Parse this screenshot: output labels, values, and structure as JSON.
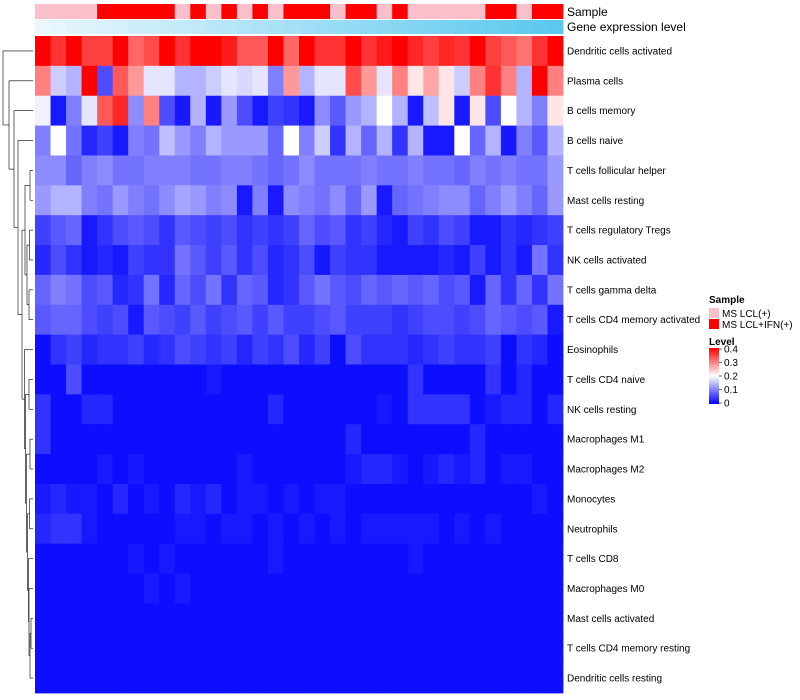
{
  "chart_data": {
    "type": "heatmap",
    "title": "",
    "annotation_labels": {
      "sample": "Sample",
      "gene": "Gene expression level"
    },
    "rows": [
      "Dendritic cells activated",
      "Plasma cells",
      "B cells memory",
      "B cells naive",
      "T cells follicular helper",
      "Mast cells resting",
      "T cells regulatory  Tregs",
      "NK cells activated",
      "T cells gamma delta",
      "T cells CD4 memory activated",
      "Eosinophils",
      "T cells CD4 naive",
      "NK cells resting",
      "Macrophages M1",
      "Macrophages M2",
      "Monocytes",
      "Neutrophils",
      "T cells CD8",
      "Macrophages M0",
      "Mast cells activated",
      "T cells CD4 memory resting",
      "Dendritic cells resting"
    ],
    "sample_groups": [
      0,
      0,
      0,
      0,
      1,
      1,
      1,
      1,
      1,
      0,
      1,
      0,
      1,
      0,
      1,
      0,
      1,
      1,
      1,
      0,
      1,
      1,
      0,
      1,
      0,
      0,
      0,
      0,
      0,
      1,
      1,
      0,
      1,
      1
    ],
    "gene_level_gradient": [
      "#eaf7fd",
      "#5bc8ee"
    ],
    "values": [
      [
        0.4,
        0.36,
        0.4,
        0.35,
        0.35,
        0.4,
        0.32,
        0.34,
        0.4,
        0.36,
        0.4,
        0.4,
        0.38,
        0.33,
        0.33,
        0.4,
        0.32,
        0.4,
        0.36,
        0.36,
        0.4,
        0.36,
        0.38,
        0.4,
        0.37,
        0.35,
        0.37,
        0.36,
        0.4,
        0.35,
        0.33,
        0.31,
        0.36,
        0.4
      ],
      [
        0.3,
        0.16,
        0.14,
        0.4,
        0.06,
        0.33,
        0.28,
        0.18,
        0.18,
        0.14,
        0.14,
        0.16,
        0.18,
        0.17,
        0.18,
        0.1,
        0.28,
        0.14,
        0.18,
        0.18,
        0.34,
        0.28,
        0.18,
        0.3,
        0.22,
        0.27,
        0.22,
        0.16,
        0.3,
        0.36,
        0.3,
        0.14,
        0.4,
        0.3
      ],
      [
        0.19,
        0.02,
        0.1,
        0.18,
        0.33,
        0.37,
        0.11,
        0.3,
        0.06,
        0.02,
        0.14,
        0.02,
        0.12,
        0.06,
        0.02,
        0.05,
        0.04,
        0.02,
        0.11,
        0.07,
        0.12,
        0.14,
        0.2,
        0.14,
        0.02,
        0.15,
        0.22,
        0.02,
        0.22,
        0.06,
        0.2,
        0.14,
        0.1,
        0.22
      ],
      [
        0.1,
        0.2,
        0.09,
        0.03,
        0.05,
        0.02,
        0.1,
        0.09,
        0.15,
        0.12,
        0.1,
        0.14,
        0.12,
        0.12,
        0.12,
        0.08,
        0.2,
        0.1,
        0.16,
        0.04,
        0.14,
        0.08,
        0.14,
        0.04,
        0.14,
        0.02,
        0.02,
        0.2,
        0.08,
        0.14,
        0.02,
        0.1,
        0.07,
        0.14
      ],
      [
        0.11,
        0.11,
        0.08,
        0.1,
        0.11,
        0.09,
        0.09,
        0.1,
        0.1,
        0.1,
        0.09,
        0.09,
        0.1,
        0.1,
        0.09,
        0.08,
        0.09,
        0.11,
        0.09,
        0.09,
        0.09,
        0.1,
        0.09,
        0.09,
        0.1,
        0.09,
        0.09,
        0.08,
        0.1,
        0.09,
        0.1,
        0.09,
        0.09,
        0.12
      ],
      [
        0.12,
        0.14,
        0.14,
        0.1,
        0.09,
        0.12,
        0.1,
        0.09,
        0.11,
        0.13,
        0.12,
        0.1,
        0.11,
        0.02,
        0.1,
        0.02,
        0.11,
        0.1,
        0.09,
        0.11,
        0.08,
        0.12,
        0.02,
        0.08,
        0.09,
        0.1,
        0.11,
        0.11,
        0.08,
        0.1,
        0.12,
        0.1,
        0.08,
        0.12
      ],
      [
        0.05,
        0.07,
        0.08,
        0.02,
        0.04,
        0.06,
        0.07,
        0.06,
        0.04,
        0.07,
        0.06,
        0.05,
        0.06,
        0.04,
        0.05,
        0.04,
        0.05,
        0.08,
        0.06,
        0.07,
        0.04,
        0.05,
        0.03,
        0.02,
        0.05,
        0.04,
        0.06,
        0.05,
        0.02,
        0.02,
        0.04,
        0.03,
        0.04,
        0.05
      ],
      [
        0.03,
        0.06,
        0.04,
        0.02,
        0.03,
        0.02,
        0.05,
        0.04,
        0.04,
        0.09,
        0.07,
        0.05,
        0.07,
        0.04,
        0.06,
        0.03,
        0.04,
        0.06,
        0.02,
        0.05,
        0.04,
        0.04,
        0.02,
        0.02,
        0.02,
        0.02,
        0.03,
        0.02,
        0.05,
        0.02,
        0.04,
        0.02,
        0.09,
        0.04
      ],
      [
        0.08,
        0.1,
        0.09,
        0.06,
        0.07,
        0.03,
        0.04,
        0.09,
        0.03,
        0.08,
        0.06,
        0.09,
        0.04,
        0.08,
        0.07,
        0.03,
        0.04,
        0.07,
        0.09,
        0.07,
        0.06,
        0.08,
        0.07,
        0.08,
        0.07,
        0.08,
        0.06,
        0.07,
        0.02,
        0.08,
        0.04,
        0.08,
        0.04,
        0.09
      ],
      [
        0.07,
        0.08,
        0.08,
        0.06,
        0.05,
        0.06,
        0.02,
        0.07,
        0.06,
        0.05,
        0.07,
        0.05,
        0.06,
        0.07,
        0.05,
        0.07,
        0.05,
        0.05,
        0.06,
        0.07,
        0.05,
        0.05,
        0.05,
        0.04,
        0.05,
        0.06,
        0.06,
        0.05,
        0.06,
        0.08,
        0.07,
        0.06,
        0.07,
        0.02
      ],
      [
        0.01,
        0.04,
        0.05,
        0.03,
        0.04,
        0.04,
        0.05,
        0.03,
        0.04,
        0.06,
        0.05,
        0.04,
        0.05,
        0.03,
        0.05,
        0.04,
        0.06,
        0.03,
        0.05,
        0.01,
        0.06,
        0.04,
        0.04,
        0.04,
        0.03,
        0.04,
        0.05,
        0.04,
        0.04,
        0.05,
        0.01,
        0.04,
        0.03,
        0.01
      ],
      [
        0.01,
        0.01,
        0.06,
        0.01,
        0.01,
        0.01,
        0.01,
        0.01,
        0.01,
        0.01,
        0.01,
        0.02,
        0.01,
        0.01,
        0.01,
        0.01,
        0.01,
        0.01,
        0.01,
        0.01,
        0.01,
        0.01,
        0.01,
        0.01,
        0.04,
        0.01,
        0.01,
        0.01,
        0.01,
        0.04,
        0.01,
        0.03,
        0.01,
        0.01
      ],
      [
        0.04,
        0.01,
        0.01,
        0.03,
        0.03,
        0.01,
        0.01,
        0.01,
        0.01,
        0.01,
        0.01,
        0.01,
        0.01,
        0.01,
        0.01,
        0.03,
        0.01,
        0.01,
        0.01,
        0.01,
        0.01,
        0.01,
        0.02,
        0.01,
        0.04,
        0.04,
        0.04,
        0.04,
        0.01,
        0.02,
        0.03,
        0.03,
        0.01,
        0.03
      ],
      [
        0.04,
        0.01,
        0.01,
        0.01,
        0.01,
        0.01,
        0.01,
        0.01,
        0.01,
        0.01,
        0.01,
        0.01,
        0.01,
        0.01,
        0.01,
        0.01,
        0.01,
        0.01,
        0.01,
        0.01,
        0.03,
        0.01,
        0.01,
        0.01,
        0.01,
        0.01,
        0.01,
        0.01,
        0.03,
        0.01,
        0.01,
        0.01,
        0.01,
        0.01
      ],
      [
        0.01,
        0.01,
        0.01,
        0.01,
        0.02,
        0.01,
        0.02,
        0.01,
        0.01,
        0.01,
        0.01,
        0.01,
        0.01,
        0.02,
        0.01,
        0.01,
        0.01,
        0.01,
        0.01,
        0.01,
        0.02,
        0.03,
        0.03,
        0.02,
        0.01,
        0.02,
        0.03,
        0.02,
        0.03,
        0.01,
        0.02,
        0.02,
        0.01,
        0.01
      ],
      [
        0.02,
        0.03,
        0.02,
        0.02,
        0.01,
        0.03,
        0.01,
        0.02,
        0.01,
        0.03,
        0.02,
        0.03,
        0.01,
        0.02,
        0.02,
        0.01,
        0.02,
        0.01,
        0.02,
        0.02,
        0.01,
        0.01,
        0.01,
        0.01,
        0.01,
        0.01,
        0.01,
        0.01,
        0.01,
        0.01,
        0.01,
        0.01,
        0.02,
        0.01
      ],
      [
        0.03,
        0.04,
        0.04,
        0.02,
        0.01,
        0.01,
        0.01,
        0.01,
        0.01,
        0.02,
        0.02,
        0.01,
        0.02,
        0.02,
        0.01,
        0.02,
        0.01,
        0.02,
        0.01,
        0.02,
        0.01,
        0.02,
        0.02,
        0.02,
        0.02,
        0.02,
        0.01,
        0.02,
        0.01,
        0.02,
        0.01,
        0.01,
        0.01,
        0.01
      ],
      [
        0.01,
        0.01,
        0.01,
        0.01,
        0.01,
        0.01,
        0.02,
        0.01,
        0.02,
        0.01,
        0.01,
        0.01,
        0.01,
        0.01,
        0.01,
        0.02,
        0.01,
        0.01,
        0.01,
        0.01,
        0.01,
        0.01,
        0.01,
        0.01,
        0.02,
        0.01,
        0.01,
        0.01,
        0.01,
        0.01,
        0.01,
        0.01,
        0.01,
        0.01
      ],
      [
        0.01,
        0.01,
        0.01,
        0.01,
        0.01,
        0.01,
        0.01,
        0.02,
        0.01,
        0.02,
        0.01,
        0.01,
        0.01,
        0.01,
        0.01,
        0.01,
        0.01,
        0.01,
        0.01,
        0.01,
        0.01,
        0.01,
        0.01,
        0.01,
        0.01,
        0.01,
        0.01,
        0.01,
        0.01,
        0.01,
        0.01,
        0.01,
        0.01,
        0.01
      ],
      [
        0.01,
        0.01,
        0.01,
        0.01,
        0.01,
        0.01,
        0.01,
        0.01,
        0.01,
        0.01,
        0.01,
        0.01,
        0.01,
        0.01,
        0.01,
        0.01,
        0.01,
        0.01,
        0.01,
        0.01,
        0.01,
        0.01,
        0.01,
        0.01,
        0.01,
        0.01,
        0.01,
        0.01,
        0.01,
        0.01,
        0.01,
        0.01,
        0.01,
        0.01
      ],
      [
        0.01,
        0.01,
        0.01,
        0.01,
        0.01,
        0.01,
        0.01,
        0.01,
        0.01,
        0.01,
        0.01,
        0.01,
        0.01,
        0.01,
        0.01,
        0.01,
        0.01,
        0.01,
        0.01,
        0.01,
        0.01,
        0.01,
        0.01,
        0.01,
        0.01,
        0.01,
        0.01,
        0.01,
        0.01,
        0.01,
        0.01,
        0.01,
        0.01,
        0.01
      ],
      [
        0.01,
        0.01,
        0.01,
        0.01,
        0.01,
        0.01,
        0.01,
        0.01,
        0.01,
        0.01,
        0.01,
        0.01,
        0.01,
        0.01,
        0.01,
        0.01,
        0.01,
        0.01,
        0.01,
        0.01,
        0.01,
        0.01,
        0.01,
        0.01,
        0.01,
        0.01,
        0.01,
        0.01,
        0.01,
        0.01,
        0.01,
        0.01,
        0.01,
        0.01
      ]
    ],
    "color_scale": {
      "min": 0,
      "mid": 0.2,
      "max": 0.4,
      "low": "#0000ff",
      "midColor": "#ffffff",
      "high": "#ff0000"
    },
    "legend": {
      "sample_title": "Sample",
      "sample_entries": [
        {
          "label": "MS LCL(+)",
          "color": "#f9c0cb"
        },
        {
          "label": "MS LCL+IFN(+)",
          "color": "#ff0000"
        }
      ],
      "level_title": "Level",
      "level_ticks": [
        "0.4",
        "0.3",
        "0.2",
        "0.1",
        "0"
      ],
      "placement": "right"
    }
  }
}
